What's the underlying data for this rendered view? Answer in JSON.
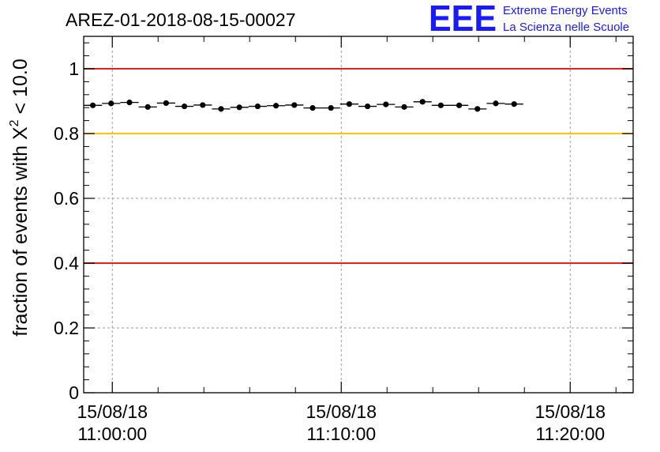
{
  "header": {
    "run_id": "AREZ-01-2018-08-15-00027"
  },
  "logo": {
    "mark": "EEE",
    "line1": "Extreme Energy Events",
    "line2": "La Scienza nelle Scuole",
    "color": "#1a1aff"
  },
  "colors": {
    "red_line": "#e8201e",
    "yellow_line": "#ffc20e",
    "points": "#000000",
    "grid": "#9a9a9a"
  },
  "chart_data": {
    "type": "scatter",
    "title": "AREZ-01-2018-08-15-00027",
    "ylabel": "fraction of events with X² < 10.0",
    "ylabel_main": "fraction of events with X",
    "ylabel_sup": "2",
    "ylabel_tail": " < 10.0",
    "xlabel": "",
    "xlim": [
      "2018-08-15 10:58:45",
      "2018-08-15 11:22:45"
    ],
    "ylim": [
      0,
      1.1
    ],
    "grid": true,
    "y_ticks": [
      {
        "value": 0,
        "label": "0"
      },
      {
        "value": 0.2,
        "label": "0.2"
      },
      {
        "value": 0.4,
        "label": "0.4"
      },
      {
        "value": 0.6,
        "label": "0.6"
      },
      {
        "value": 0.8,
        "label": "0.8"
      },
      {
        "value": 1,
        "label": "1"
      }
    ],
    "x_ticks": [
      {
        "value": "2018-08-15 11:00:00",
        "date_label": "15/08/18",
        "time_label": "11:00:00"
      },
      {
        "value": "2018-08-15 11:10:00",
        "date_label": "15/08/18",
        "time_label": "11:10:00"
      },
      {
        "value": "2018-08-15 11:20:00",
        "date_label": "15/08/18",
        "time_label": "11:20:00"
      }
    ],
    "x_minor_ticks": [
      "2018-08-15 11:02:00",
      "2018-08-15 11:04:00",
      "2018-08-15 11:06:00",
      "2018-08-15 11:08:00",
      "2018-08-15 11:12:00",
      "2018-08-15 11:14:00",
      "2018-08-15 11:16:00",
      "2018-08-15 11:18:00",
      "2018-08-15 11:22:00"
    ],
    "reference_lines": [
      {
        "y": 1.0,
        "color": "#e8201e"
      },
      {
        "y": 0.8,
        "color": "#ffc20e"
      },
      {
        "y": 0.4,
        "color": "#e8201e"
      }
    ],
    "bin_width": "00:00:48",
    "points": [
      {
        "x": "2018-08-15 10:59:09",
        "y": 0.887
      },
      {
        "x": "2018-08-15 10:59:57",
        "y": 0.893
      },
      {
        "x": "2018-08-15 11:00:45",
        "y": 0.896
      },
      {
        "x": "2018-08-15 11:01:33",
        "y": 0.882
      },
      {
        "x": "2018-08-15 11:02:21",
        "y": 0.894
      },
      {
        "x": "2018-08-15 11:03:09",
        "y": 0.884
      },
      {
        "x": "2018-08-15 11:03:57",
        "y": 0.888
      },
      {
        "x": "2018-08-15 11:04:45",
        "y": 0.876
      },
      {
        "x": "2018-08-15 11:05:33",
        "y": 0.881
      },
      {
        "x": "2018-08-15 11:06:21",
        "y": 0.884
      },
      {
        "x": "2018-08-15 11:07:09",
        "y": 0.886
      },
      {
        "x": "2018-08-15 11:07:57",
        "y": 0.888
      },
      {
        "x": "2018-08-15 11:08:45",
        "y": 0.879
      },
      {
        "x": "2018-08-15 11:09:33",
        "y": 0.879
      },
      {
        "x": "2018-08-15 11:10:21",
        "y": 0.891
      },
      {
        "x": "2018-08-15 11:11:09",
        "y": 0.884
      },
      {
        "x": "2018-08-15 11:11:57",
        "y": 0.89
      },
      {
        "x": "2018-08-15 11:12:45",
        "y": 0.882
      },
      {
        "x": "2018-08-15 11:13:33",
        "y": 0.898
      },
      {
        "x": "2018-08-15 11:14:21",
        "y": 0.887
      },
      {
        "x": "2018-08-15 11:15:09",
        "y": 0.887
      },
      {
        "x": "2018-08-15 11:15:57",
        "y": 0.876
      },
      {
        "x": "2018-08-15 11:16:45",
        "y": 0.893
      },
      {
        "x": "2018-08-15 11:17:33",
        "y": 0.891
      }
    ]
  }
}
